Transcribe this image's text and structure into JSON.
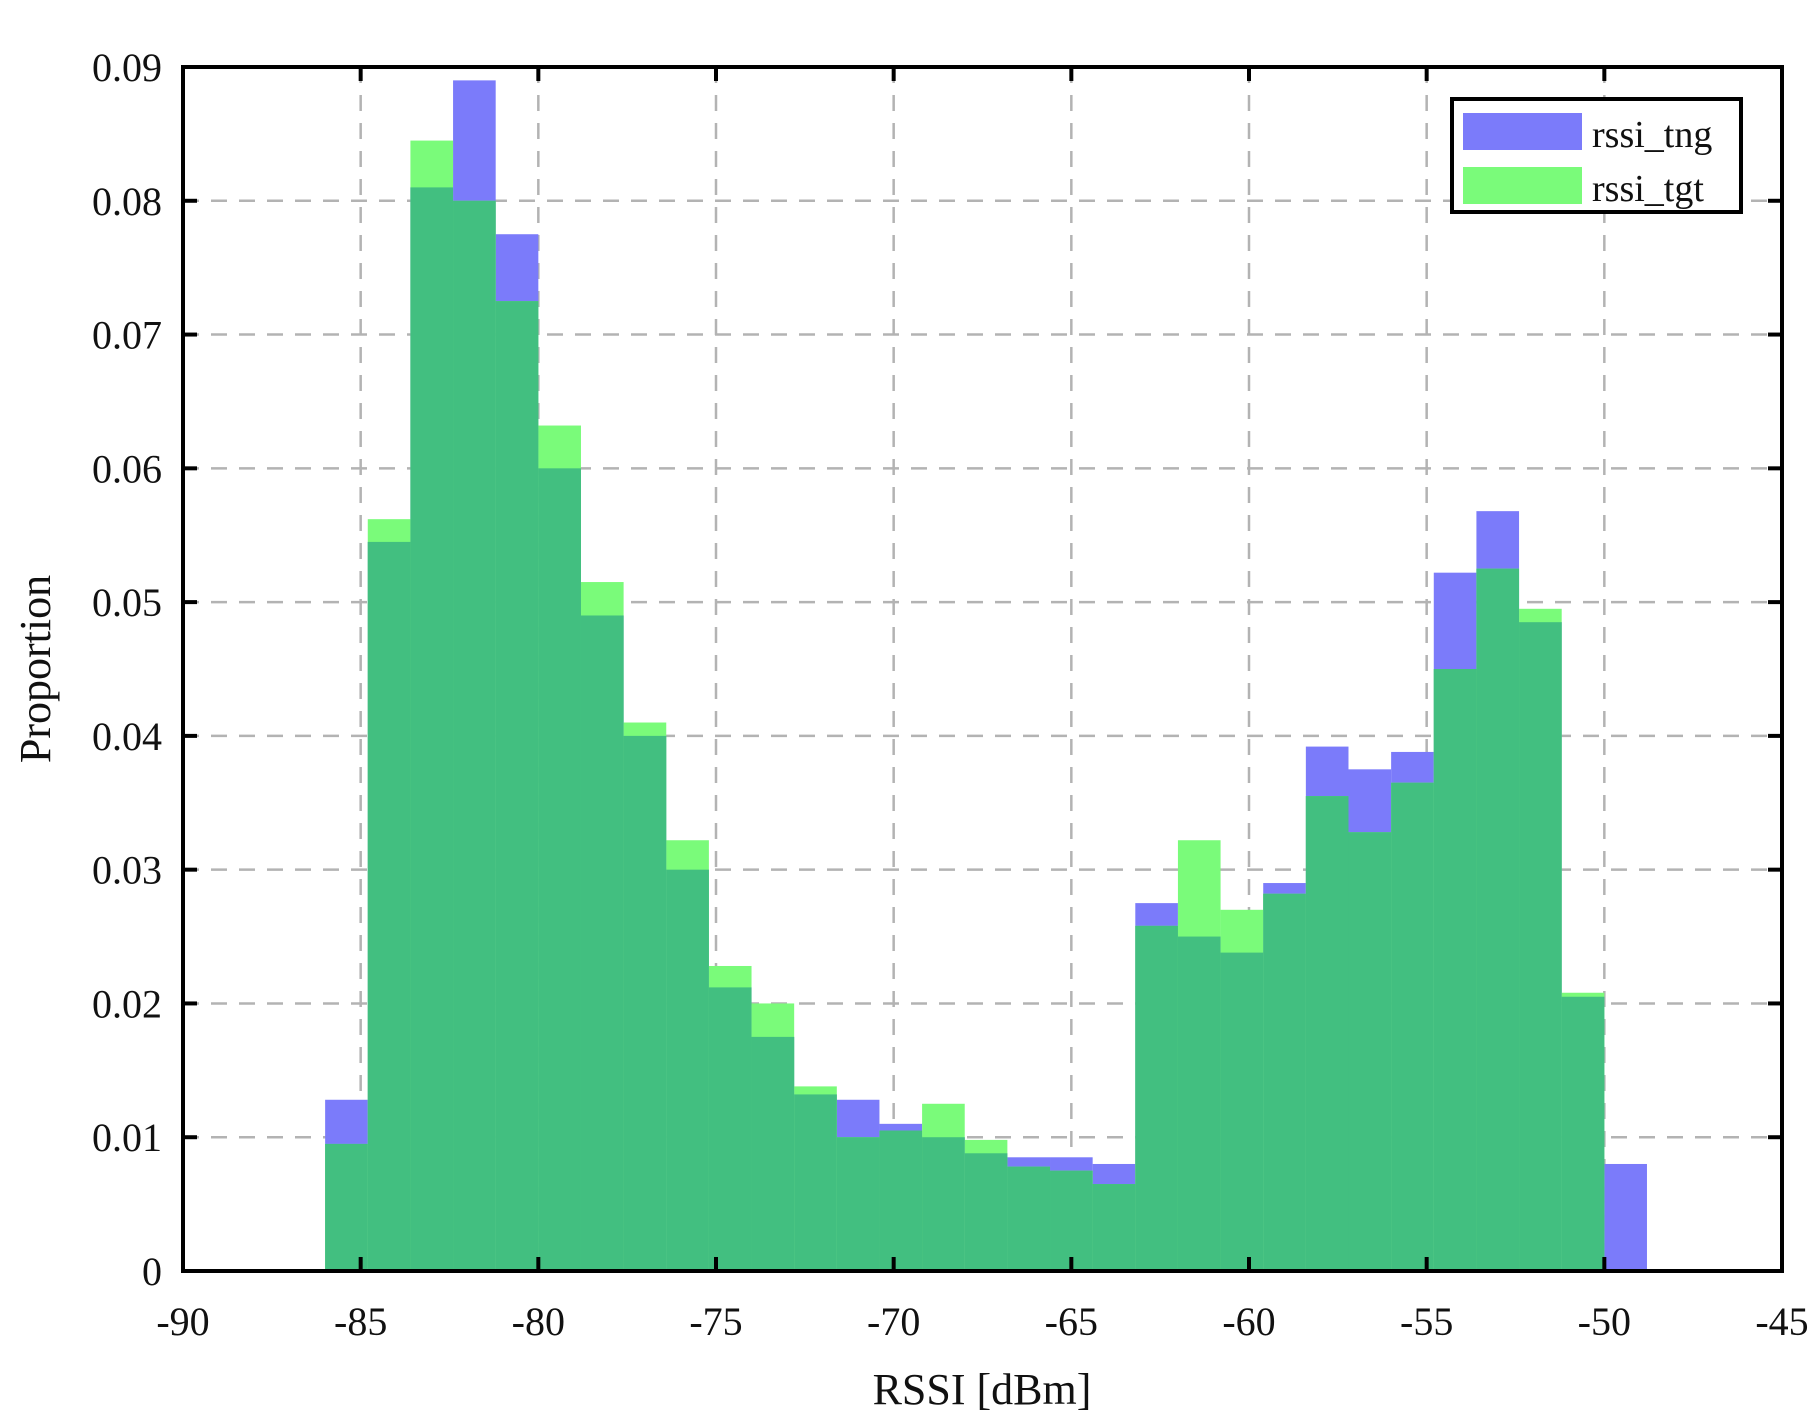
{
  "chart_data": {
    "type": "bar",
    "subtype": "histogram-overlay",
    "xlabel": "RSSI [dBm]",
    "ylabel": "Proportion",
    "xlim": [
      -90,
      -45
    ],
    "ylim": [
      0,
      0.09
    ],
    "xticks": [
      "-90",
      "-85",
      "-80",
      "-75",
      "-70",
      "-65",
      "-60",
      "-55",
      "-50",
      "-45"
    ],
    "yticks": [
      "0",
      "0.01",
      "0.02",
      "0.03",
      "0.04",
      "0.05",
      "0.06",
      "0.07",
      "0.08",
      "0.09"
    ],
    "grid": true,
    "legend_position": "top-right",
    "overlap_color": "#42BF80",
    "series": [
      {
        "name": "rssi_tng",
        "color": "#7B7BFA",
        "bin_width": 1.2,
        "x": [
          -85.4,
          -84.2,
          -83.0,
          -81.8,
          -80.6,
          -79.4,
          -78.2,
          -77.0,
          -75.8,
          -74.6,
          -73.4,
          -72.2,
          -71.0,
          -69.8,
          -68.6,
          -67.4,
          -66.2,
          -65.0,
          -63.8,
          -62.6,
          -61.4,
          -60.2,
          -59.0,
          -57.8,
          -56.6,
          -55.4,
          -54.2,
          -53.0,
          -51.8,
          -50.6,
          -49.4
        ],
        "values": [
          0.0128,
          0.0545,
          0.081,
          0.089,
          0.0775,
          0.06,
          0.049,
          0.04,
          0.03,
          0.0212,
          0.0175,
          0.0132,
          0.0128,
          0.011,
          0.01,
          0.0088,
          0.0085,
          0.0085,
          0.008,
          0.0275,
          0.025,
          0.0238,
          0.029,
          0.0392,
          0.0375,
          0.0388,
          0.0522,
          0.0568,
          0.0485,
          0.0205,
          0.008
        ]
      },
      {
        "name": "rssi_tgt",
        "color": "#7AFB7A",
        "bin_width": 1.2,
        "x": [
          -85.4,
          -84.2,
          -83.0,
          -81.8,
          -80.6,
          -79.4,
          -78.2,
          -77.0,
          -75.8,
          -74.6,
          -73.4,
          -72.2,
          -71.0,
          -69.8,
          -68.6,
          -67.4,
          -66.2,
          -65.0,
          -63.8,
          -62.6,
          -61.4,
          -60.2,
          -59.0,
          -57.8,
          -56.6,
          -55.4,
          -54.2,
          -53.0,
          -51.8,
          -50.6,
          -49.4
        ],
        "values": [
          0.0095,
          0.0562,
          0.0845,
          0.08,
          0.0725,
          0.0632,
          0.0515,
          0.041,
          0.0322,
          0.0228,
          0.02,
          0.0138,
          0.01,
          0.0105,
          0.0125,
          0.0098,
          0.0078,
          0.0075,
          0.0065,
          0.0258,
          0.0322,
          0.027,
          0.0282,
          0.0355,
          0.0328,
          0.0365,
          0.045,
          0.0525,
          0.0495,
          0.0208,
          0.0
        ]
      }
    ]
  }
}
